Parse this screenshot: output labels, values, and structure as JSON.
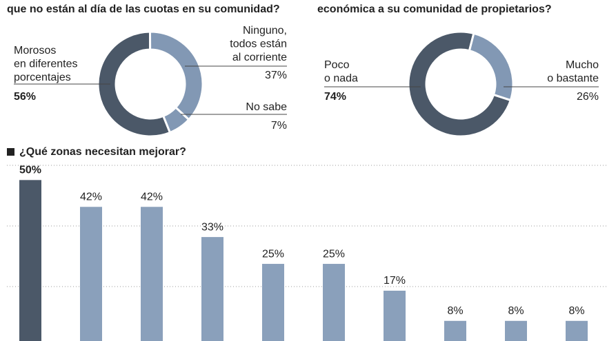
{
  "chart_data": [
    {
      "type": "donut",
      "title": "que no están al día de las cuotas en su comunidad?",
      "categories": [
        [
          "Morosos",
          "en diferentes",
          "porcentajes"
        ],
        [
          "Ninguno,",
          "todos están",
          "al corriente"
        ],
        [
          "No sabe"
        ]
      ],
      "values": [
        56,
        37,
        7
      ],
      "value_labels": [
        "56%",
        "37%",
        "7%"
      ],
      "colors": [
        "#4b5868",
        "#8298b4",
        "#8298b4"
      ]
    },
    {
      "type": "donut",
      "title": "económica a su comunidad de propietarios?",
      "categories": [
        [
          "Poco",
          "o nada"
        ],
        [
          "Mucho",
          "o bastante"
        ]
      ],
      "values": [
        74,
        26
      ],
      "value_labels": [
        "74%",
        "26%"
      ],
      "colors": [
        "#4b5868",
        "#8298b4"
      ]
    },
    {
      "type": "bar",
      "title": "¿Qué zonas necesitan mejorar?",
      "categories": [
        null,
        null,
        null,
        null,
        null,
        null,
        null,
        null,
        null,
        null
      ],
      "values": [
        50,
        42,
        42,
        33,
        25,
        25,
        17,
        8,
        8,
        8
      ],
      "value_labels": [
        "50%",
        "42%",
        "42%",
        "33%",
        "25%",
        "25%",
        "17%",
        "8%",
        "8%",
        "8%"
      ],
      "colors": [
        "#4b5868",
        "#8aa0bb",
        "#8aa0bb",
        "#8aa0bb",
        "#8aa0bb",
        "#8aa0bb",
        "#8aa0bb",
        "#8aa0bb",
        "#8aa0bb",
        "#8aa0bb"
      ],
      "ylim": [
        2,
        55
      ]
    }
  ]
}
